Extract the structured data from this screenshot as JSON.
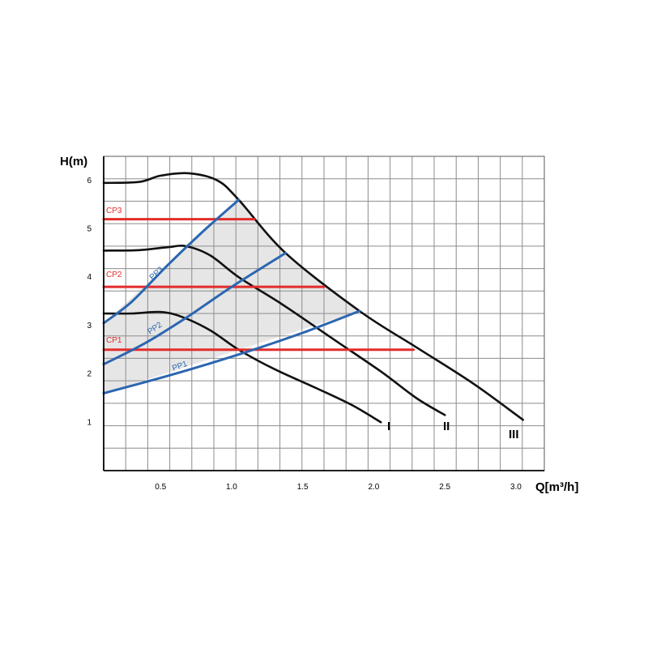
{
  "chart_data": {
    "type": "line",
    "title": "",
    "xlabel": "Q[m³/h]",
    "ylabel": "H(m)",
    "xlim": [
      0.1,
      3.2
    ],
    "ylim": [
      0,
      6.5
    ],
    "grid": true,
    "x_ticks": [
      {
        "value": 0.5,
        "label": "0.5"
      },
      {
        "value": 1.0,
        "label": "1.0"
      },
      {
        "value": 1.5,
        "label": "1.5"
      },
      {
        "value": 2.0,
        "label": "2.0"
      },
      {
        "value": 2.5,
        "label": "2.5"
      },
      {
        "value": 3.0,
        "label": "3.0"
      }
    ],
    "y_ticks": [
      {
        "value": 1,
        "label": "1"
      },
      {
        "value": 2,
        "label": "2"
      },
      {
        "value": 3,
        "label": "3"
      },
      {
        "value": 4,
        "label": "4"
      },
      {
        "value": 5,
        "label": "5"
      },
      {
        "value": 6,
        "label": "6"
      }
    ],
    "operating_region": {
      "fill": "#e6e6e6",
      "points": [
        [
          0.1,
          1.6
        ],
        [
          0.1,
          3.05
        ],
        [
          1.05,
          5.6
        ],
        [
          1.38,
          4.5
        ],
        [
          1.9,
          3.3
        ],
        [
          1.9,
          3.3
        ],
        [
          0.1,
          1.6
        ]
      ]
    },
    "series": [
      {
        "name": "I",
        "kind": "speed",
        "color": "#111111",
        "points": [
          [
            0.1,
            3.25
          ],
          [
            0.3,
            3.25
          ],
          [
            0.5,
            3.28
          ],
          [
            0.65,
            3.18
          ],
          [
            0.85,
            2.9
          ],
          [
            1.05,
            2.5
          ],
          [
            1.3,
            2.1
          ],
          [
            1.6,
            1.7
          ],
          [
            1.85,
            1.35
          ],
          [
            2.05,
            1.0
          ]
        ]
      },
      {
        "name": "II",
        "kind": "speed",
        "color": "#111111",
        "points": [
          [
            0.1,
            4.55
          ],
          [
            0.35,
            4.56
          ],
          [
            0.55,
            4.62
          ],
          [
            0.68,
            4.64
          ],
          [
            0.85,
            4.45
          ],
          [
            1.05,
            4.0
          ],
          [
            1.35,
            3.45
          ],
          [
            1.7,
            2.75
          ],
          [
            2.05,
            2.05
          ],
          [
            2.3,
            1.5
          ],
          [
            2.5,
            1.15
          ]
        ]
      },
      {
        "name": "III",
        "kind": "speed",
        "color": "#111111",
        "points": [
          [
            0.1,
            5.95
          ],
          [
            0.35,
            5.97
          ],
          [
            0.5,
            6.1
          ],
          [
            0.7,
            6.15
          ],
          [
            0.9,
            6.0
          ],
          [
            1.05,
            5.6
          ],
          [
            1.38,
            4.5
          ],
          [
            1.9,
            3.3
          ],
          [
            2.3,
            2.55
          ],
          [
            2.7,
            1.8
          ],
          [
            3.05,
            1.05
          ]
        ]
      },
      {
        "name": "CP3",
        "kind": "constant",
        "color": "#e32b2b",
        "points": [
          [
            0.1,
            5.2
          ],
          [
            1.16,
            5.2
          ]
        ]
      },
      {
        "name": "CP2",
        "kind": "constant",
        "color": "#e32b2b",
        "points": [
          [
            0.1,
            3.8
          ],
          [
            1.65,
            3.8
          ]
        ]
      },
      {
        "name": "CP1",
        "kind": "constant",
        "color": "#e32b2b",
        "points": [
          [
            0.1,
            2.5
          ],
          [
            2.28,
            2.5
          ]
        ]
      },
      {
        "name": "PP3",
        "kind": "proportional",
        "color": "#2b66b0",
        "points": [
          [
            0.1,
            3.05
          ],
          [
            0.3,
            3.5
          ],
          [
            0.55,
            4.25
          ],
          [
            0.8,
            4.95
          ],
          [
            1.05,
            5.6
          ]
        ]
      },
      {
        "name": "PP2",
        "kind": "proportional",
        "color": "#2b66b0",
        "points": [
          [
            0.1,
            2.2
          ],
          [
            0.4,
            2.65
          ],
          [
            0.7,
            3.2
          ],
          [
            1.0,
            3.8
          ],
          [
            1.38,
            4.5
          ]
        ]
      },
      {
        "name": "PP1",
        "kind": "proportional",
        "color": "#2b66b0",
        "points": [
          [
            0.1,
            1.6
          ],
          [
            0.6,
            2.0
          ],
          [
            1.1,
            2.45
          ],
          [
            1.5,
            2.85
          ],
          [
            1.9,
            3.3
          ]
        ]
      }
    ],
    "annotations": [
      {
        "text": "CP3",
        "color": "#e32b2b"
      },
      {
        "text": "CP2",
        "color": "#e32b2b"
      },
      {
        "text": "CP1",
        "color": "#e32b2b"
      },
      {
        "text": "PP3",
        "color": "#2b66b0"
      },
      {
        "text": "PP2",
        "color": "#2b66b0"
      },
      {
        "text": "PP1",
        "color": "#2b66b0"
      },
      {
        "text": "I",
        "color": "#111111"
      },
      {
        "text": "II",
        "color": "#111111"
      },
      {
        "text": "III",
        "color": "#111111"
      }
    ]
  }
}
